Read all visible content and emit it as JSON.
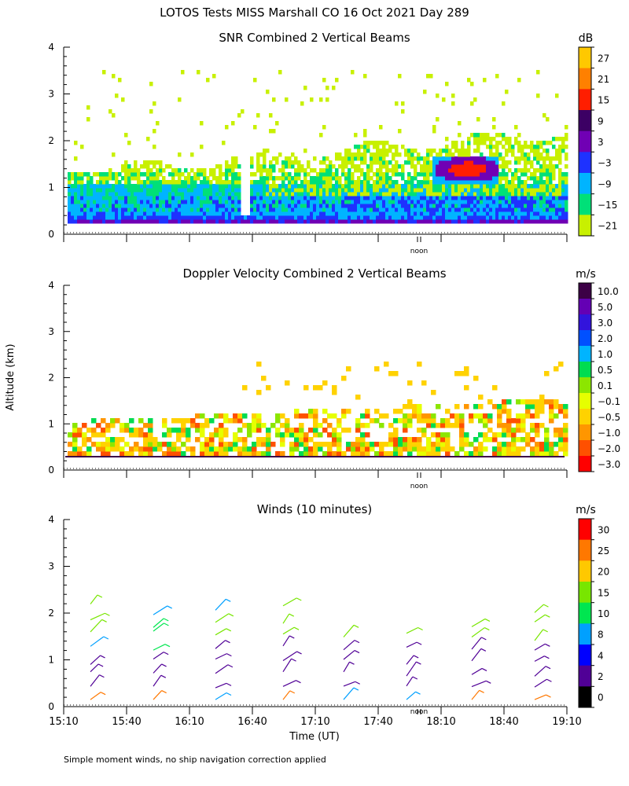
{
  "page_title": "LOTOS Tests MISS Marshall CO  16 Oct 2021 Day 289",
  "y_axis_label": "Altitude (km)",
  "x_axis_label": "Time (UT)",
  "footnote": "Simple moment winds, no ship navigation correction applied",
  "noon_label": "noon",
  "chart_data": [
    {
      "type": "heatmap",
      "title": "SNR Combined 2 Vertical Beams",
      "unit": "dB",
      "ylim": [
        0,
        4
      ],
      "yticks": [
        "0",
        "1",
        "2",
        "3",
        "4"
      ],
      "xlim": [
        "15:10",
        "19:10"
      ],
      "colorbar": {
        "labels": [
          "27",
          "21",
          "15",
          "9",
          "3",
          "−3",
          "−9",
          "−15",
          "−21"
        ],
        "colors": [
          "#ffc800",
          "#ff8000",
          "#ff1e00",
          "#3c0064",
          "#7000b4",
          "#1e32ff",
          "#00b4ff",
          "#00e078",
          "#c8f000"
        ]
      }
    },
    {
      "type": "heatmap",
      "title": "Doppler Velocity Combined 2 Vertical Beams",
      "unit": "m/s",
      "ylim": [
        0,
        4
      ],
      "yticks": [
        "0",
        "1",
        "2",
        "3",
        "4"
      ],
      "xlim": [
        "15:10",
        "19:10"
      ],
      "colorbar": {
        "labels": [
          "10.0",
          "5.0",
          "3.0",
          "2.0",
          "1.0",
          "0.5",
          "0.1",
          "−0.1",
          "−0.5",
          "−1.0",
          "−2.0",
          "−3.0"
        ],
        "colors": [
          "#3c0046",
          "#6400b4",
          "#3214dc",
          "#0050ff",
          "#00b4ff",
          "#00dc50",
          "#8ce600",
          "#e6ff00",
          "#ffd200",
          "#ff9600",
          "#ff5000",
          "#ff0000"
        ]
      }
    },
    {
      "type": "scatter",
      "title": "Winds (10 minutes)",
      "unit": "m/s",
      "ylim": [
        0,
        4
      ],
      "yticks": [
        "0",
        "1",
        "2",
        "3",
        "4"
      ],
      "xticks": [
        "15:10",
        "15:40",
        "16:10",
        "16:40",
        "17:10",
        "17:40",
        "18:10",
        "18:40",
        "19:10"
      ],
      "colorbar": {
        "labels": [
          "30",
          "25",
          "20",
          "15",
          "10",
          "8",
          "4",
          "2",
          "0"
        ],
        "colors": [
          "#ff0000",
          "#ff7800",
          "#ffc800",
          "#78e600",
          "#00e650",
          "#00a0ff",
          "#0000ff",
          "#500096",
          "#000000"
        ]
      }
    }
  ]
}
